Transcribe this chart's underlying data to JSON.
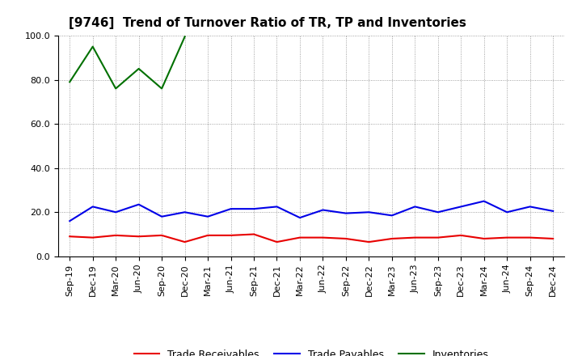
{
  "title": "[9746]  Trend of Turnover Ratio of TR, TP and Inventories",
  "x_labels": [
    "Sep-19",
    "Dec-19",
    "Mar-20",
    "Jun-20",
    "Sep-20",
    "Dec-20",
    "Mar-21",
    "Jun-21",
    "Sep-21",
    "Dec-21",
    "Mar-22",
    "Jun-22",
    "Sep-22",
    "Dec-22",
    "Mar-23",
    "Jun-23",
    "Sep-23",
    "Dec-23",
    "Mar-24",
    "Jun-24",
    "Sep-24",
    "Dec-24"
  ],
  "trade_receivables": [
    9.0,
    8.5,
    9.5,
    9.0,
    9.5,
    6.5,
    9.5,
    9.5,
    10.0,
    6.5,
    8.5,
    8.5,
    8.0,
    6.5,
    8.0,
    8.5,
    8.5,
    9.5,
    8.0,
    8.5,
    8.5,
    8.0
  ],
  "trade_payables": [
    16.0,
    22.5,
    20.0,
    23.5,
    18.0,
    20.0,
    18.0,
    21.5,
    21.5,
    22.5,
    17.5,
    21.0,
    19.5,
    20.0,
    18.5,
    22.5,
    20.0,
    22.5,
    25.0,
    20.0,
    22.5,
    20.5
  ],
  "inventories": [
    79.0,
    95.0,
    76.0,
    85.0,
    76.0,
    99.5,
    null,
    null,
    null,
    null,
    null,
    null,
    null,
    null,
    null,
    null,
    null,
    null,
    null,
    null,
    null,
    null
  ],
  "ylim": [
    0,
    100
  ],
  "yticks": [
    0.0,
    20.0,
    40.0,
    60.0,
    80.0,
    100.0
  ],
  "tr_color": "#e80000",
  "tp_color": "#0000e8",
  "inv_color": "#007000",
  "bg_color": "#ffffff",
  "grid_color": "#888888",
  "title_fontsize": 11,
  "axis_fontsize": 8,
  "legend_fontsize": 9,
  "legend_labels": [
    "Trade Receivables",
    "Trade Payables",
    "Inventories"
  ],
  "linewidth": 1.5
}
